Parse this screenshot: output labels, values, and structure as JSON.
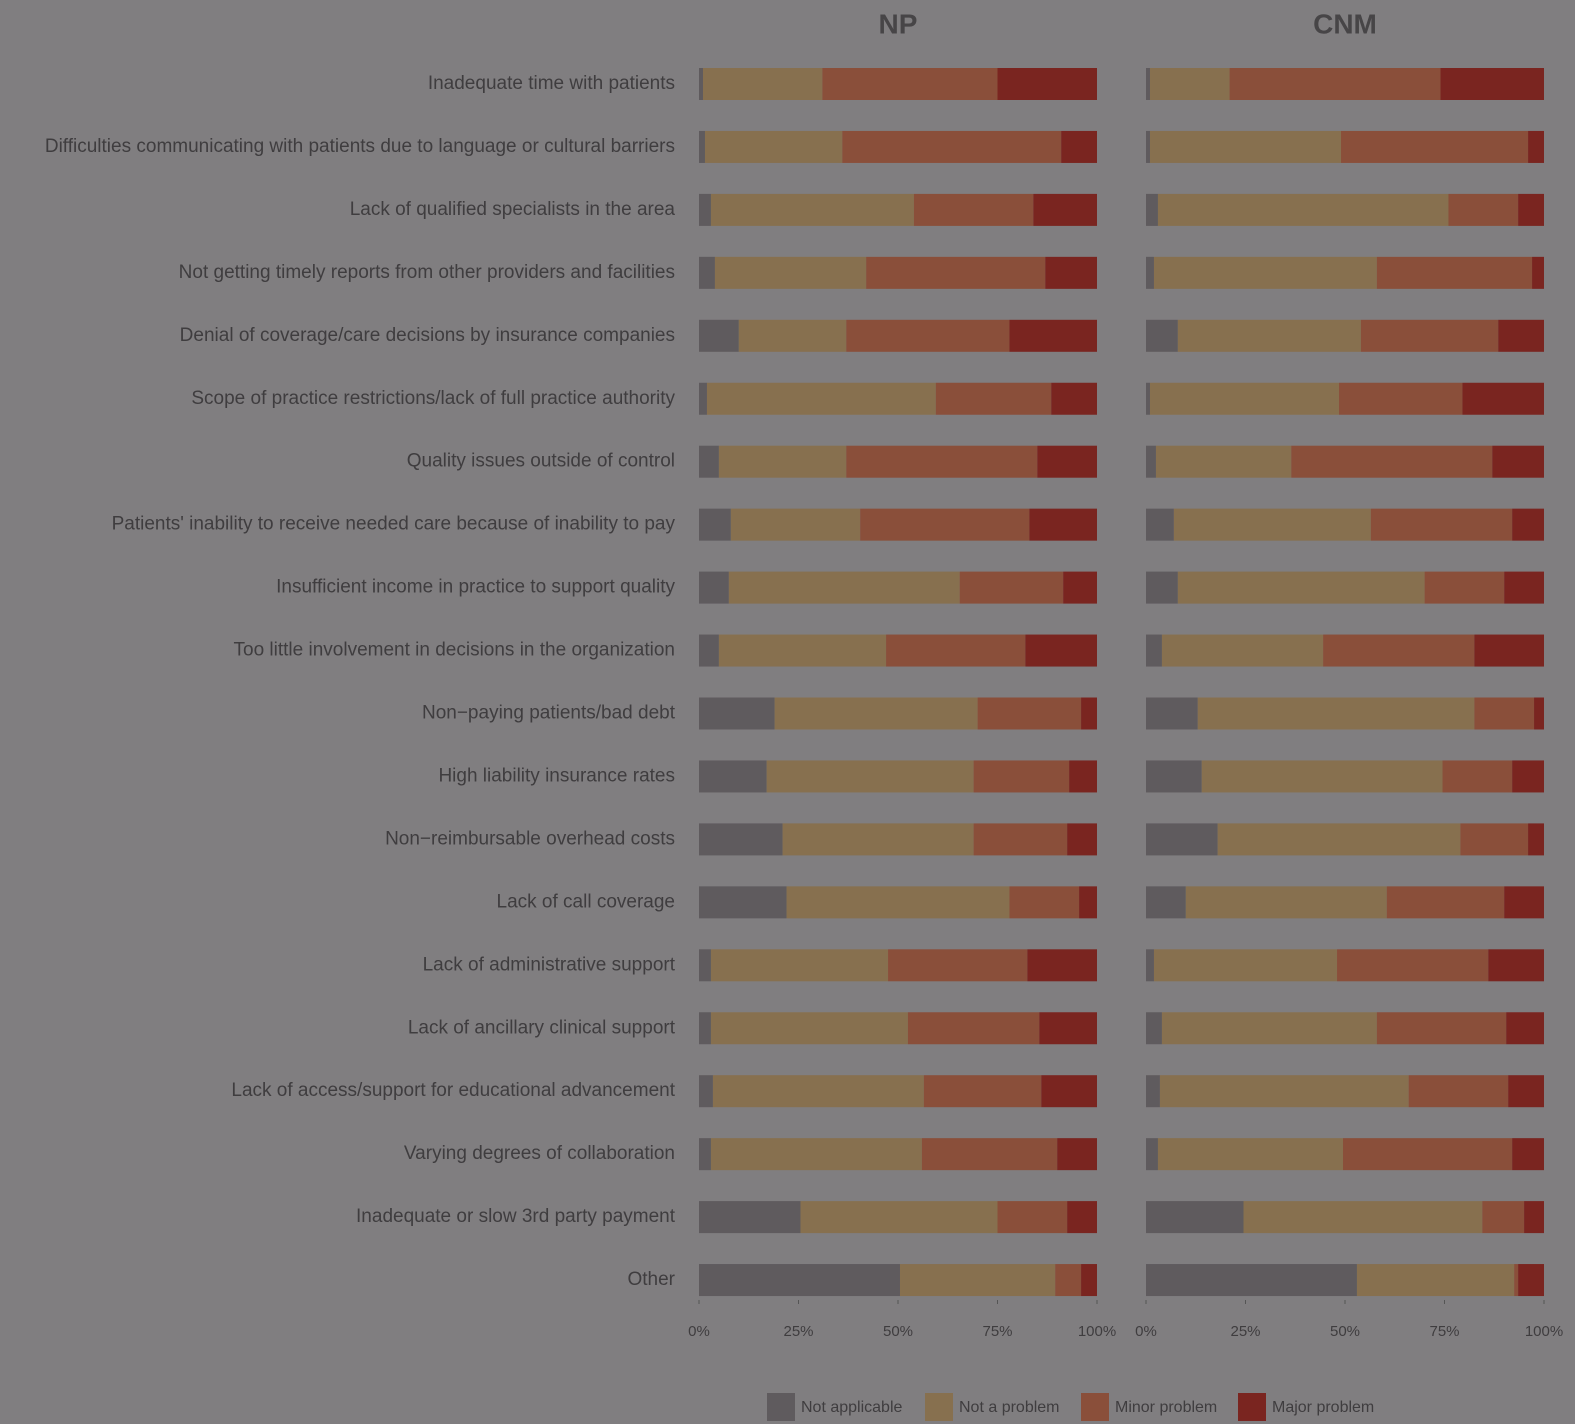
{
  "chart_data": {
    "type": "bar",
    "orientation": "horizontal",
    "stacked": true,
    "categories": [
      "Inadequate time with patients",
      "Difficulties communicating with patients due to language or cultural barriers",
      "Lack of qualified specialists in the area",
      "Not getting timely reports from other providers and facilities",
      "Denial of coverage/care decisions by insurance companies",
      "Scope of practice restrictions/lack of full practice authority",
      "Quality issues outside of control",
      "Patients' inability to receive needed care because of inability to pay",
      "Insufficient income in practice to support quality",
      "Too little involvement in decisions in the organization",
      "Non−paying patients/bad debt",
      "High liability insurance rates",
      "Non−reimbursable overhead costs",
      "Lack of call coverage",
      "Lack of administrative support",
      "Lack of ancillary clinical support",
      "Lack of access/support for educational advancement",
      "Varying degrees of collaboration",
      "Inadequate or slow 3rd party payment",
      "Other"
    ],
    "series": [
      {
        "name": "Not applicable",
        "color": "#5f5b5e"
      },
      {
        "name": "Not a problem",
        "color": "#87704f"
      },
      {
        "name": "Minor problem",
        "color": "#8a4f3a"
      },
      {
        "name": "Major problem",
        "color": "#7a2520"
      }
    ],
    "panels": [
      {
        "title": "NP",
        "xlim": [
          0,
          100
        ],
        "xticks": [
          {
            "value": 0,
            "label": "0%"
          },
          {
            "value": 25,
            "label": "25%"
          },
          {
            "value": 50,
            "label": "50%"
          },
          {
            "value": 75,
            "label": "75%"
          },
          {
            "value": 100,
            "label": "100%"
          }
        ],
        "series": [
          {
            "values": [
              1,
              1.5,
              3,
              4,
              10,
              2,
              5,
              8,
              7.5,
              5,
              19,
              17,
              21,
              22,
              3,
              3,
              3.5,
              3,
              25.5,
              50.5
            ]
          },
          {
            "values": [
              30,
              34.5,
              51,
              38,
              27,
              57.5,
              32,
              32.5,
              58,
              42,
              51,
              52,
              48,
              56,
              44.5,
              49.5,
              53,
              53,
              49.5,
              39
            ]
          },
          {
            "values": [
              44,
              55,
              30,
              45,
              41,
              29,
              48,
              42.5,
              26,
              35,
              26,
              24,
              23.5,
              17.5,
              35,
              33,
              29.5,
              34,
              17.5,
              6.5
            ]
          },
          {
            "values": [
              25,
              9,
              16,
              13,
              22,
              11.5,
              15,
              17,
              8.5,
              18,
              4,
              7,
              7.5,
              4.5,
              17.5,
              14.5,
              14,
              10,
              7.5,
              4
            ]
          }
        ]
      },
      {
        "title": "CNM",
        "xlim": [
          0,
          100
        ],
        "xticks": [
          {
            "value": 0,
            "label": "0%"
          },
          {
            "value": 25,
            "label": "25%"
          },
          {
            "value": 50,
            "label": "50%"
          },
          {
            "value": 75,
            "label": "75%"
          },
          {
            "value": 100,
            "label": "100%"
          }
        ],
        "series": [
          {
            "values": [
              1,
              1,
              3,
              2,
              8,
              1,
              2.5,
              7,
              8,
              4,
              13,
              14,
              18,
              10,
              2,
              4,
              3.5,
              3,
              24.5,
              53
            ]
          },
          {
            "values": [
              20,
              48,
              73,
              56,
              46,
              47.5,
              34,
              49.5,
              62,
              40.5,
              69.5,
              60.5,
              61,
              50.5,
              46,
              54,
              62.5,
              46.5,
              60,
              39.5
            ]
          },
          {
            "values": [
              53,
              47,
              17.5,
              39,
              34.5,
              31,
              50.5,
              35.5,
              20,
              38,
              15,
              17.5,
              17,
              29.5,
              38,
              32.5,
              25,
              42.5,
              10.5,
              1
            ]
          },
          {
            "values": [
              26,
              4,
              6.5,
              3,
              11.5,
              20.5,
              13,
              8,
              10,
              17.5,
              2.5,
              8,
              4,
              10,
              14,
              9.5,
              9,
              8,
              5,
              6.5
            ]
          }
        ]
      }
    ]
  }
}
